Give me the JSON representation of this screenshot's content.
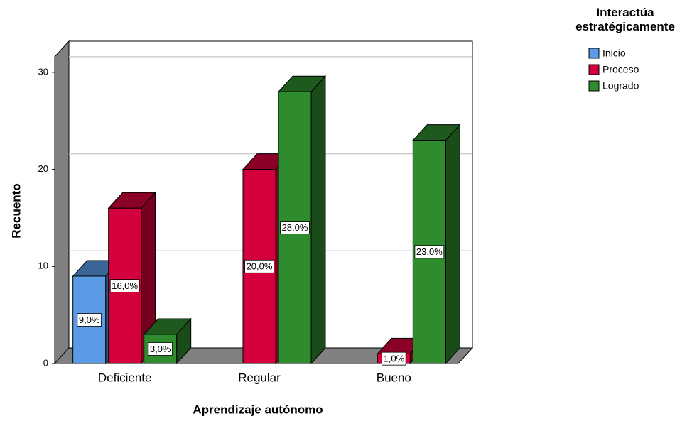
{
  "chart_data": {
    "type": "bar3d",
    "x_label": "Aprendizaje autónomo",
    "y_label": "Recuento",
    "legend_title": "Interactúa estratégicamente",
    "categories": [
      "Deficiente",
      "Regular",
      "Bueno"
    ],
    "series": [
      {
        "name": "Inicio",
        "color": "#5b9be6",
        "values": [
          9,
          null,
          null
        ],
        "value_labels": [
          "9,0%",
          null,
          null
        ]
      },
      {
        "name": "Proceso",
        "color": "#d4003b",
        "values": [
          16,
          20,
          1
        ],
        "value_labels": [
          "16,0%",
          "20,0%",
          "1,0%"
        ]
      },
      {
        "name": "Logrado",
        "color": "#2e8b2e",
        "values": [
          3,
          28,
          23
        ],
        "value_labels": [
          "3,0%",
          "28,0%",
          "23,0%"
        ]
      }
    ],
    "ylim": [
      0,
      31.6
    ],
    "yticks": [
      0,
      10,
      20,
      30
    ],
    "grid": true,
    "legend": "right"
  }
}
